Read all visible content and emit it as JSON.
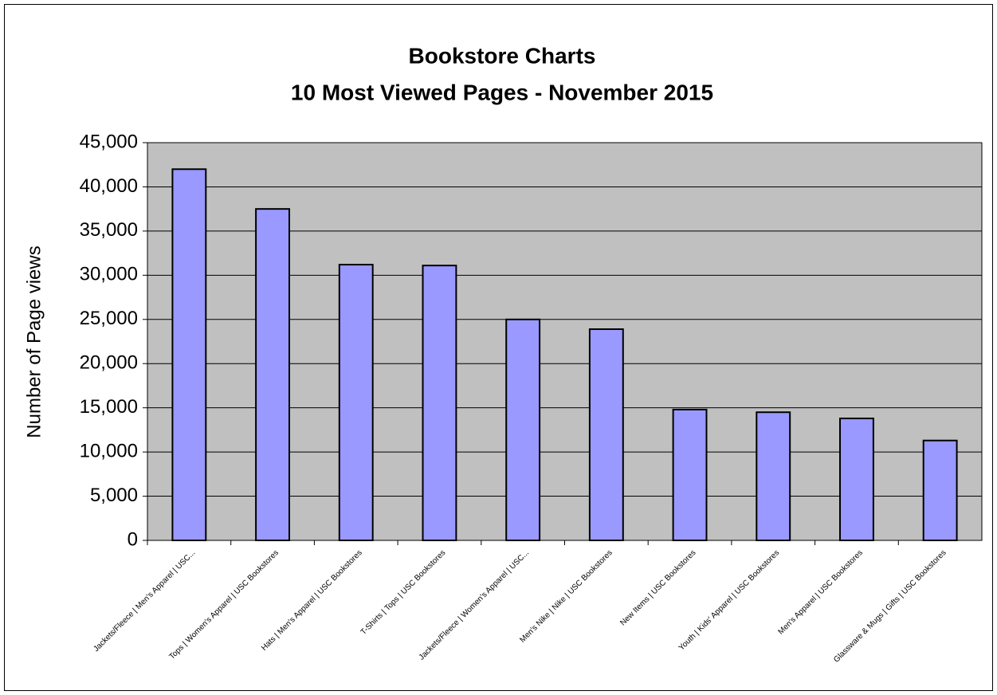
{
  "chart_data": {
    "type": "bar",
    "title": "Bookstore Charts",
    "subtitle": "10 Most Viewed Pages - November 2015",
    "y_label": "Number of Page views",
    "categories": [
      "Jackets/Fleece | Men's Apparel | USC...",
      "Tops | Women's Apparel | USC Bookstores",
      "Hats | Men's Apparel | USC Bookstores",
      "T-Shirts | Tops | USC Bookstores",
      "Jackets/Fleece | Women's Apparel | USC...",
      "Men's Nike | Nike | USC Bookstores",
      "New Items | USC Bookstores",
      "Youth | Kids' Apparel | USC Bookstores",
      "Men's Apparel | USC Bookstores",
      "Glassware & Mugs | Gifts | USC Bookstores"
    ],
    "values": [
      42000,
      37500,
      31200,
      31100,
      25000,
      23900,
      14800,
      14500,
      13800,
      11300
    ],
    "color": "#9999ff",
    "ylim": [
      0,
      45000
    ],
    "yticks": [
      0,
      {
        "value": 5000,
        "label": "5,000"
      },
      {
        "value": 10000,
        "label": "10,000"
      },
      {
        "value": 15000,
        "label": "15,000"
      },
      {
        "value": 20000,
        "label": "20,000"
      },
      {
        "value": 25000,
        "label": "25,000"
      },
      {
        "value": 30000,
        "label": "30,000"
      },
      {
        "value": 35000,
        "label": "35,000"
      },
      {
        "value": 40000,
        "label": "40,000"
      },
      {
        "value": 45000,
        "label": "45,000"
      }
    ],
    "grid": true
  }
}
